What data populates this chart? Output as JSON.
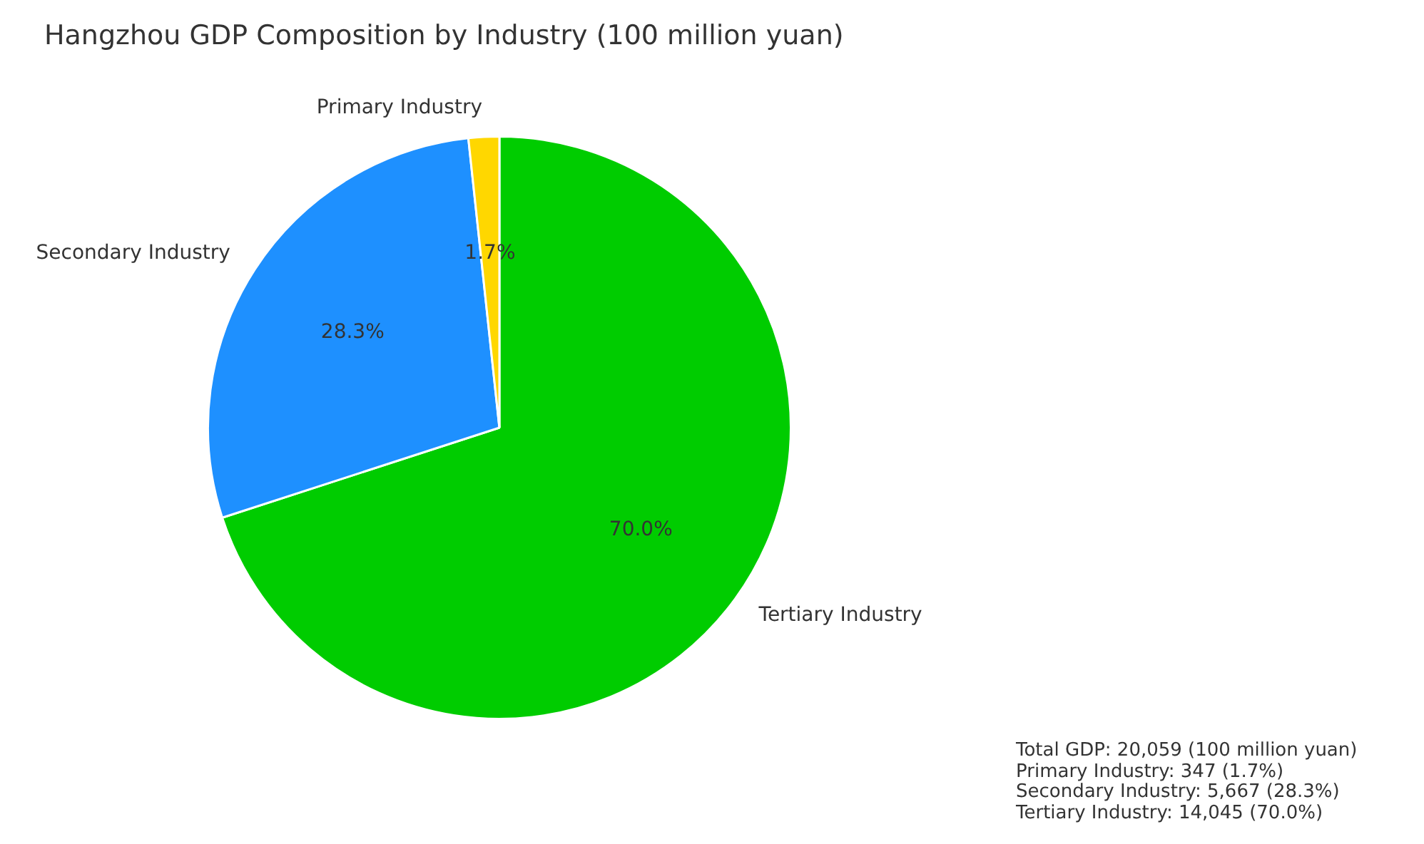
{
  "chart_data": {
    "type": "pie",
    "title": "Hangzhou GDP Composition by Industry (100 million yuan)",
    "categories": [
      "Tertiary Industry",
      "Secondary Industry",
      "Primary Industry"
    ],
    "values": [
      70.0,
      28.3,
      1.7
    ],
    "colors": [
      "#00cc00",
      "#1e90ff",
      "#ffd700"
    ],
    "value_labels": [
      "70.0%",
      "28.3%",
      "1.7%"
    ],
    "data_labels": true,
    "legend": false,
    "annotations": [
      "Total GDP: 20,059 (100 million yuan)",
      "Primary Industry: 347 (1.7%)",
      "Secondary Industry: 5,667 (28.3%)",
      "Tertiary Industry: 14,045 (70.0%)"
    ]
  }
}
